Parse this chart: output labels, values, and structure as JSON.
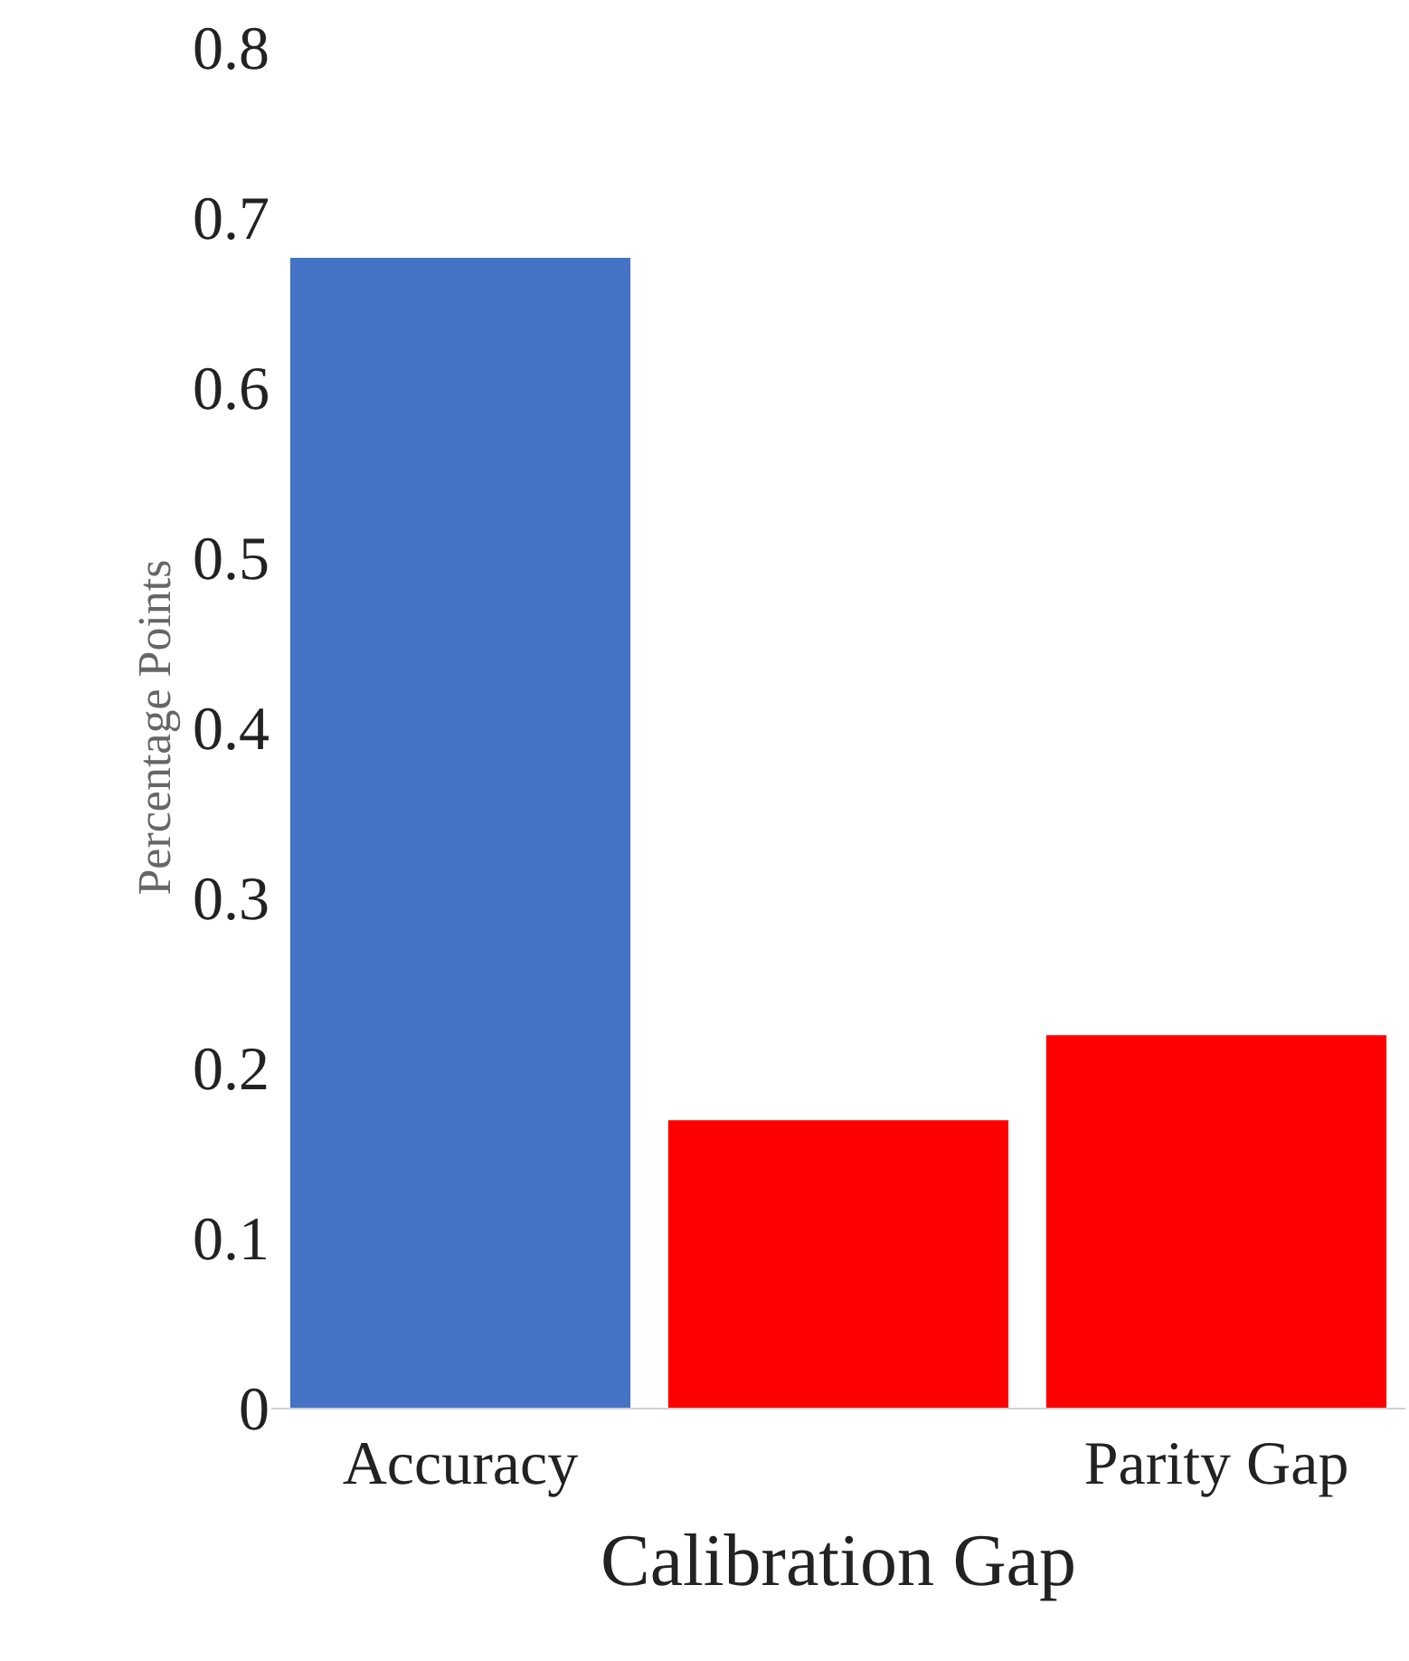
{
  "chart_data": {
    "type": "bar",
    "ylabel": "Percentage Points",
    "xlabel": "Calibration Gap",
    "categories": [
      "Accuracy",
      null,
      "Parity Gap"
    ],
    "values": [
      0.676,
      0.169,
      0.219
    ],
    "colors": [
      "#4472c4",
      "#ff0000",
      "#ff0000"
    ],
    "ylim": [
      0,
      0.8
    ],
    "yticks": [
      0,
      0.1,
      0.2,
      0.3,
      0.4,
      0.5,
      0.6,
      0.7,
      0.8
    ]
  }
}
